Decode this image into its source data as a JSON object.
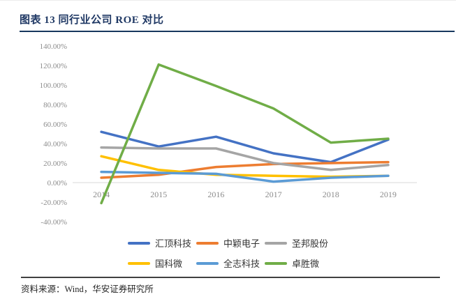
{
  "page": {
    "title": "图表 13 同行业公司 ROE 对比",
    "source": "资料来源：Wind，华安证券研究所"
  },
  "colors": {
    "title_text": "#1F3864",
    "title_rule": "#17375E",
    "axis_text": "#8C8C8C",
    "axis_line": "#D9D9D9",
    "source_rule": "#404040",
    "legend_text": "#333333"
  },
  "chart_data": {
    "type": "line",
    "title": "同行业公司 ROE 对比",
    "categories": [
      "2014",
      "2015",
      "2016",
      "2017",
      "2018",
      "2019"
    ],
    "series": [
      {
        "name": "汇顶科技",
        "color": "#4472C4",
        "values": [
          52,
          37,
          47,
          30,
          21,
          44
        ]
      },
      {
        "name": "中颖电子",
        "color": "#ED7D31",
        "values": [
          5,
          8,
          16,
          19,
          20,
          21
        ]
      },
      {
        "name": "圣邦股份",
        "color": "#A5A5A5",
        "values": [
          36,
          35,
          35,
          20,
          13,
          18
        ]
      },
      {
        "name": "国科微",
        "color": "#FFC000",
        "values": [
          27,
          13,
          8,
          7,
          6,
          7
        ]
      },
      {
        "name": "全志科技",
        "color": "#5B9BD5",
        "values": [
          11,
          10,
          9,
          1,
          5,
          7
        ]
      },
      {
        "name": "卓胜微",
        "color": "#70AD47",
        "values": [
          -21,
          121,
          99,
          76,
          41,
          45
        ]
      }
    ],
    "ylim": [
      -40,
      140
    ],
    "y_ticks": [
      {
        "label": "140.00%",
        "value": 140
      },
      {
        "label": "120.00%",
        "value": 120
      },
      {
        "label": "100.00%",
        "value": 100
      },
      {
        "label": "80.00%",
        "value": 80
      },
      {
        "label": "60.00%",
        "value": 60
      },
      {
        "label": "40.00%",
        "value": 40
      },
      {
        "label": "20.00%",
        "value": 20
      },
      {
        "label": "0.00%",
        "value": 0
      },
      {
        "label": "-20.00%",
        "value": -20
      },
      {
        "label": "-40.00%",
        "value": -40
      }
    ],
    "grid": false,
    "legend_position": "bottom"
  }
}
